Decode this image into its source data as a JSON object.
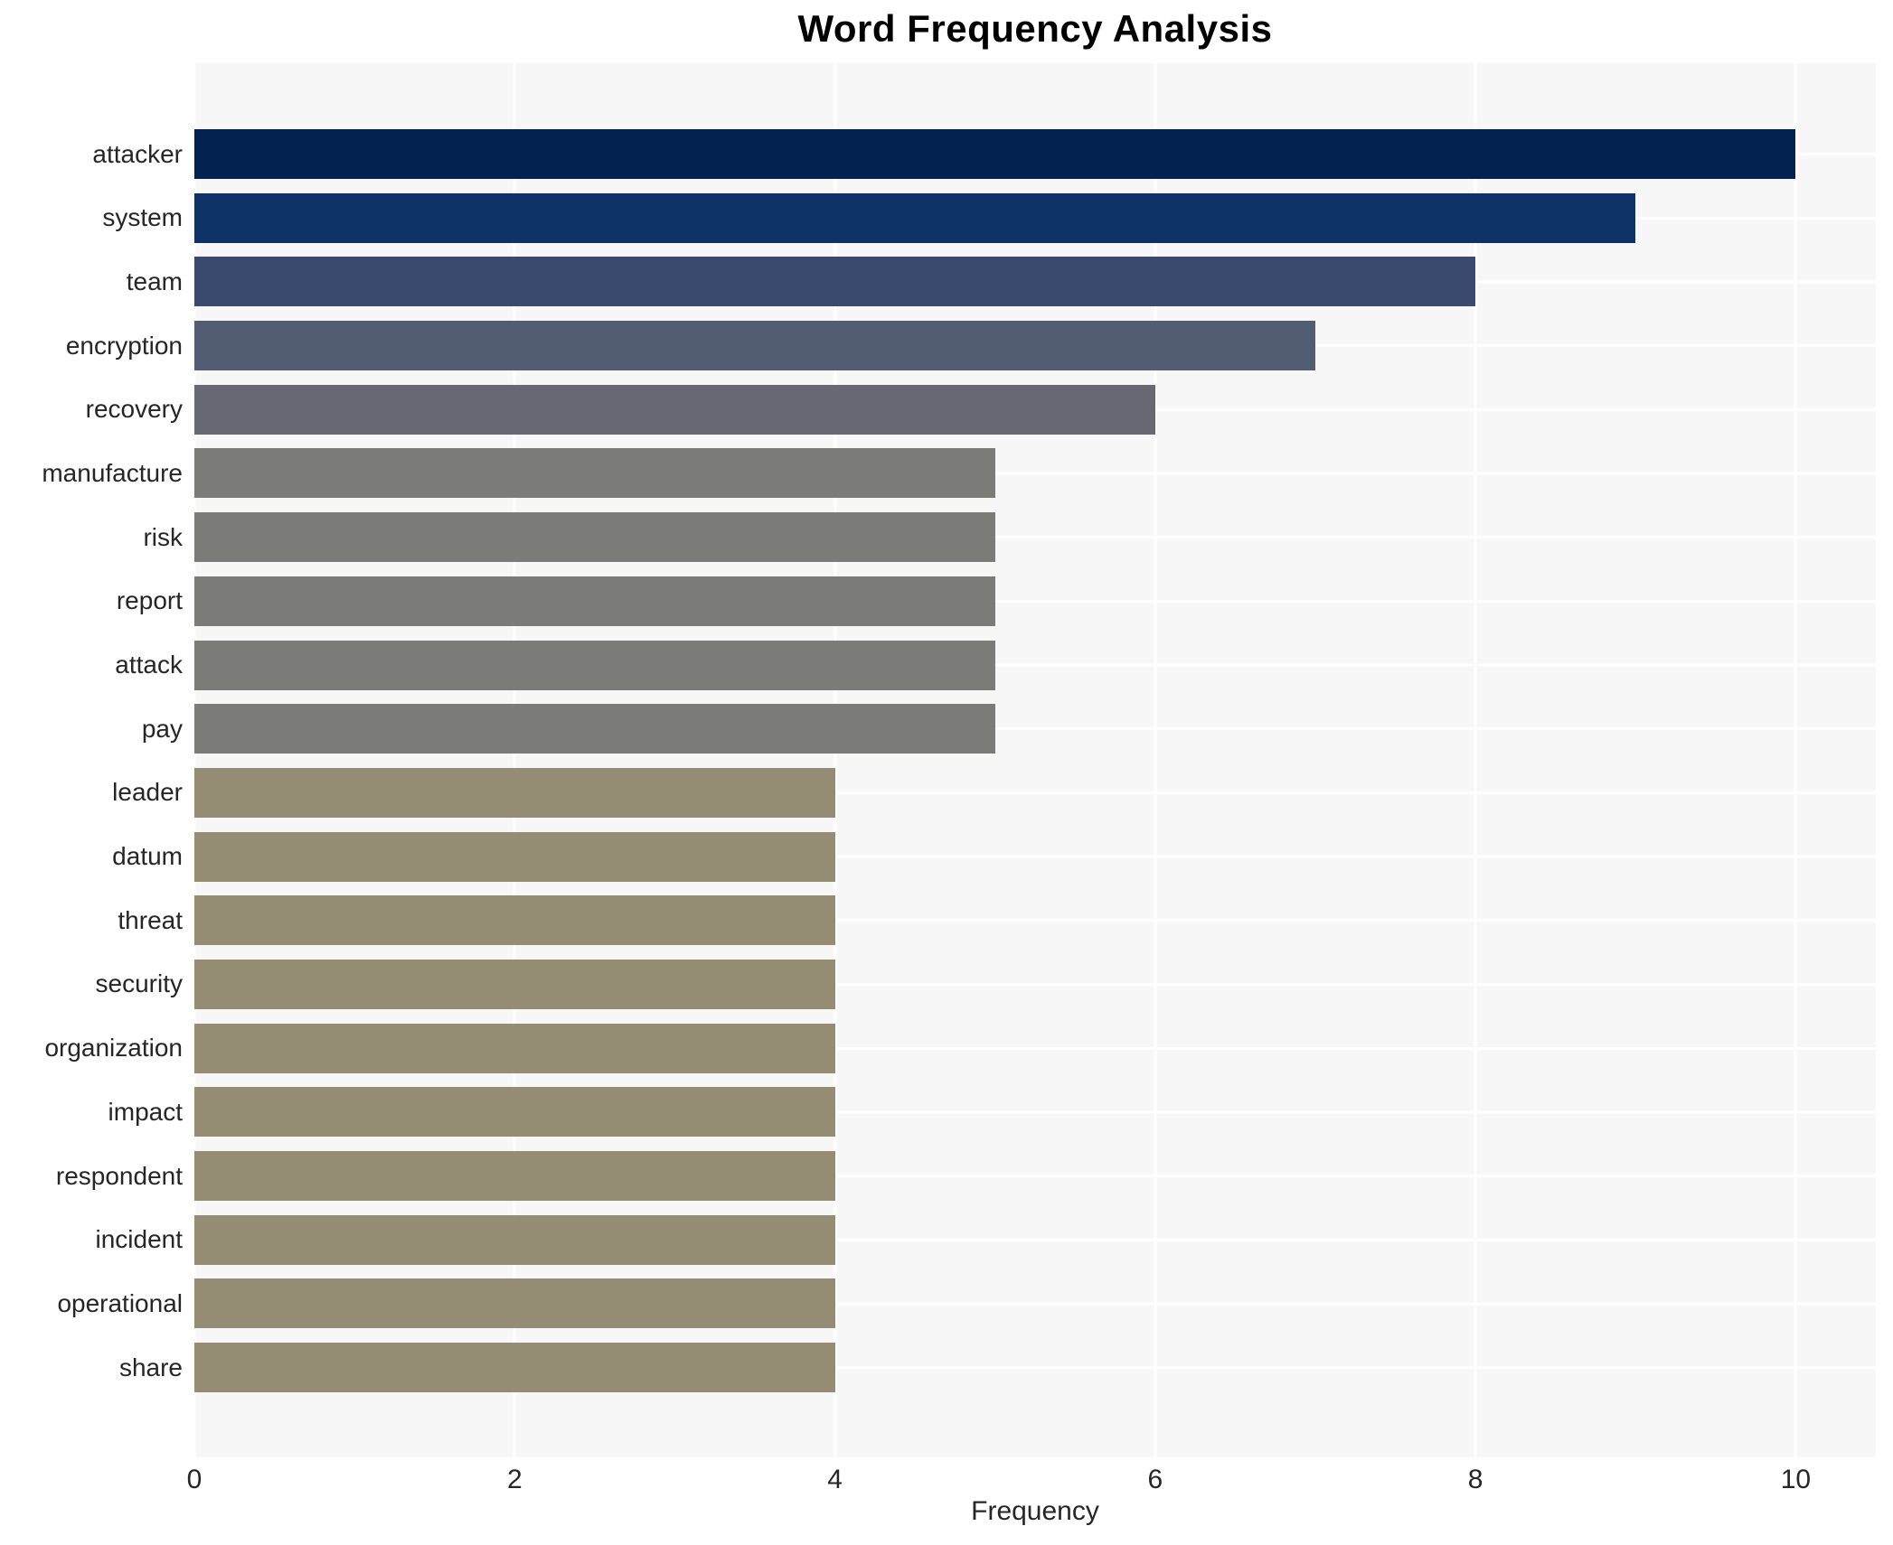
{
  "chart_data": {
    "type": "bar",
    "orientation": "horizontal",
    "title": "Word Frequency Analysis",
    "xlabel": "Frequency",
    "ylabel": "",
    "categories": [
      "attacker",
      "system",
      "team",
      "encryption",
      "recovery",
      "manufacture",
      "risk",
      "report",
      "attack",
      "pay",
      "leader",
      "datum",
      "threat",
      "security",
      "organization",
      "impact",
      "respondent",
      "incident",
      "operational",
      "share"
    ],
    "values": [
      10,
      9,
      8,
      7,
      6,
      5,
      5,
      5,
      5,
      5,
      4,
      4,
      4,
      4,
      4,
      4,
      4,
      4,
      4,
      4
    ],
    "bar_colors": [
      "#03224f",
      "#0c3266",
      "#3a4a6e",
      "#525c72",
      "#666972",
      "#7b7b78",
      "#7b7b78",
      "#7b7b78",
      "#7b7b78",
      "#7b7b78",
      "#948d74",
      "#948d74",
      "#948d74",
      "#948d74",
      "#948d74",
      "#948d74",
      "#948d74",
      "#948d74",
      "#948d74",
      "#948d74"
    ],
    "xticks": [
      0,
      2,
      4,
      6,
      8,
      10
    ],
    "xlim": [
      0,
      10.5
    ],
    "grid": true,
    "legend_position": "none",
    "plot_background": "#f7f7f7",
    "gridline_color": "#ffffff",
    "tick_text_color": "#262626",
    "title_color": "#000000"
  }
}
